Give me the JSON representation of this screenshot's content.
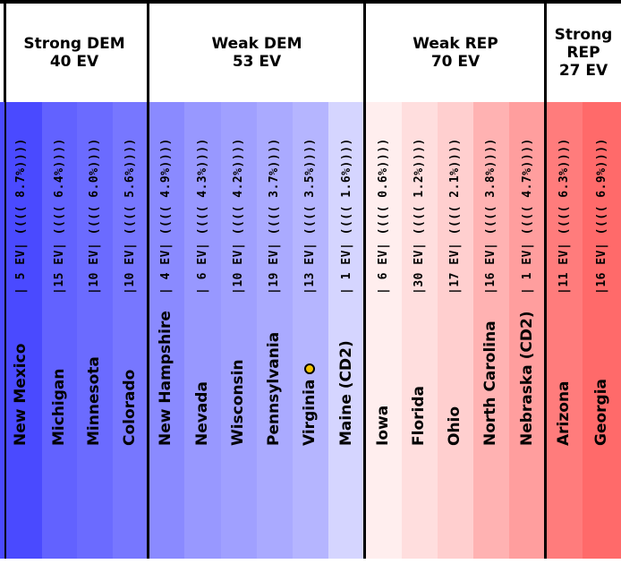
{
  "chart_data": {
    "type": "table",
    "groups": [
      {
        "name": "Strong DEM",
        "ev_label": "40 EV",
        "states": [
          {
            "name": "New Mexico",
            "detail": "|  5 EV|  (((( 8.7%))))",
            "color": "#4a4aff"
          },
          {
            "name": "Michigan",
            "detail": "|15 EV|  (((( 6.4%))))",
            "color": "#6262ff"
          },
          {
            "name": "Minnesota",
            "detail": "|10 EV|  (((( 6.0%))))",
            "color": "#6b6bff"
          },
          {
            "name": "Colorado",
            "detail": "|10 EV|  (((( 5.6%))))",
            "color": "#7777ff"
          }
        ]
      },
      {
        "name": "Weak DEM",
        "ev_label": "53 EV",
        "states": [
          {
            "name": "New Hampshire",
            "detail": "|  4 EV|  (((( 4.9%))))",
            "color": "#8a8aff"
          },
          {
            "name": "Nevada",
            "detail": "|  6 EV|  (((( 4.3%))))",
            "color": "#9898ff"
          },
          {
            "name": "Wisconsin",
            "detail": "|10 EV|  (((( 4.2%))))",
            "color": "#a0a0ff"
          },
          {
            "name": "Pennsylvania",
            "detail": "|19 EV|  (((( 3.7%))))",
            "color": "#aaaaff"
          },
          {
            "name": "Virginia",
            "detail": "|13 EV|  (((( 3.5%))))",
            "color": "#b5b5ff",
            "marker": true
          },
          {
            "name": "Maine (CD2)",
            "detail": "|  1 EV|  (((( 1.6%))))",
            "color": "#d5d5ff"
          }
        ]
      },
      {
        "name": "Weak REP",
        "ev_label": "70 EV",
        "states": [
          {
            "name": "Iowa",
            "detail": "|  6 EV|  (((( 0.6%))))",
            "color": "#ffeeee"
          },
          {
            "name": "Florida",
            "detail": "|30 EV|  (((( 1.2%))))",
            "color": "#ffdede"
          },
          {
            "name": "Ohio",
            "detail": "|17 EV|  (((( 2.1%))))",
            "color": "#ffcfcf"
          },
          {
            "name": "North Carolina",
            "detail": "|16 EV|  (((( 3.8%))))",
            "color": "#ffb2b2"
          },
          {
            "name": "Nebraska (CD2)",
            "detail": "|  1 EV|  (((( 4.7%))))",
            "color": "#ff9e9e"
          }
        ]
      },
      {
        "name": "Strong REP",
        "ev_label": "27 EV",
        "states": [
          {
            "name": "Arizona",
            "detail": "|11 EV|  (((( 6.3%))))",
            "color": "#ff7c7c"
          },
          {
            "name": "Georgia",
            "detail": "|16 EV|  (((( 6.9%))))",
            "color": "#ff6a6a"
          }
        ]
      }
    ]
  }
}
